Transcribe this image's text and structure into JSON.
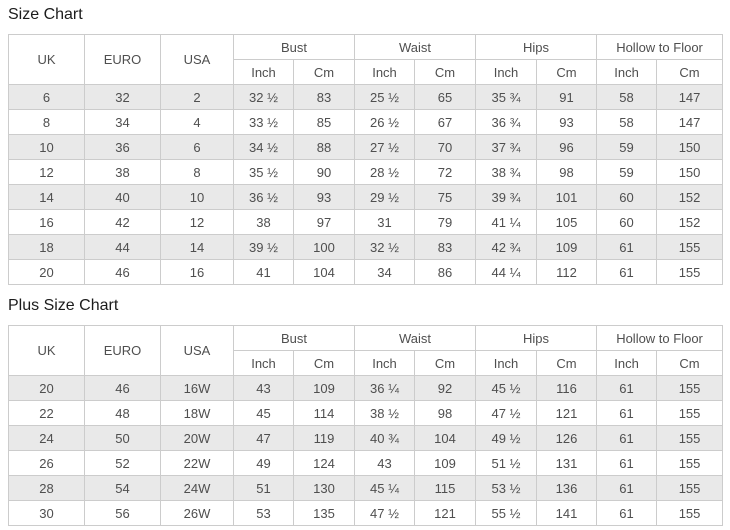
{
  "colors": {
    "stripe_row": "#e9e9e9",
    "plain_row": "#ffffff",
    "border": "#cccccc",
    "cell_text": "#4f4f4f",
    "title_text": "#1c1c1c"
  },
  "tables": [
    {
      "title": "Size Chart",
      "main_columns": [
        "UK",
        "EURO",
        "USA"
      ],
      "group_columns": [
        "Bust",
        "Waist",
        "Hips",
        "Hollow to Floor"
      ],
      "sub_columns": [
        "Inch",
        "Cm"
      ],
      "rows": [
        [
          "6",
          "32",
          "2",
          "32 ½",
          "83",
          "25 ½",
          "65",
          "35 ¾",
          "91",
          "58",
          "147"
        ],
        [
          "8",
          "34",
          "4",
          "33 ½",
          "85",
          "26 ½",
          "67",
          "36 ¾",
          "93",
          "58",
          "147"
        ],
        [
          "10",
          "36",
          "6",
          "34 ½",
          "88",
          "27 ½",
          "70",
          "37 ¾",
          "96",
          "59",
          "150"
        ],
        [
          "12",
          "38",
          "8",
          "35 ½",
          "90",
          "28 ½",
          "72",
          "38 ¾",
          "98",
          "59",
          "150"
        ],
        [
          "14",
          "40",
          "10",
          "36 ½",
          "93",
          "29 ½",
          "75",
          "39 ¾",
          "101",
          "60",
          "152"
        ],
        [
          "16",
          "42",
          "12",
          "38",
          "97",
          "31",
          "79",
          "41 ¼",
          "105",
          "60",
          "152"
        ],
        [
          "18",
          "44",
          "14",
          "39 ½",
          "100",
          "32 ½",
          "83",
          "42 ¾",
          "109",
          "61",
          "155"
        ],
        [
          "20",
          "46",
          "16",
          "41",
          "104",
          "34",
          "86",
          "44 ¼",
          "112",
          "61",
          "155"
        ]
      ]
    },
    {
      "title": "Plus Size Chart",
      "main_columns": [
        "UK",
        "EURO",
        "USA"
      ],
      "group_columns": [
        "Bust",
        "Waist",
        "Hips",
        "Hollow to Floor"
      ],
      "sub_columns": [
        "Inch",
        "Cm"
      ],
      "rows": [
        [
          "20",
          "46",
          "16W",
          "43",
          "109",
          "36 ¼",
          "92",
          "45 ½",
          "116",
          "61",
          "155"
        ],
        [
          "22",
          "48",
          "18W",
          "45",
          "114",
          "38 ½",
          "98",
          "47 ½",
          "121",
          "61",
          "155"
        ],
        [
          "24",
          "50",
          "20W",
          "47",
          "119",
          "40 ¾",
          "104",
          "49 ½",
          "126",
          "61",
          "155"
        ],
        [
          "26",
          "52",
          "22W",
          "49",
          "124",
          "43",
          "109",
          "51 ½",
          "131",
          "61",
          "155"
        ],
        [
          "28",
          "54",
          "24W",
          "51",
          "130",
          "45 ¼",
          "115",
          "53 ½",
          "136",
          "61",
          "155"
        ],
        [
          "30",
          "56",
          "26W",
          "53",
          "135",
          "47 ½",
          "121",
          "55 ½",
          "141",
          "61",
          "155"
        ]
      ]
    }
  ]
}
